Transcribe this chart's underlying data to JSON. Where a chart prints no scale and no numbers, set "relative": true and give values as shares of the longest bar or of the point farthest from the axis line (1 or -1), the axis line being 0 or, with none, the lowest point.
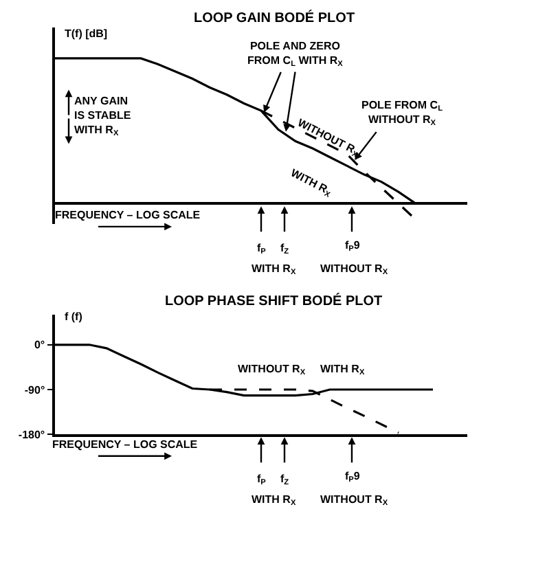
{
  "chart_data": [
    {
      "type": "line",
      "title": "LOOP GAIN BODÉ PLOT",
      "xlabel": "FREQUENCY – LOG SCALE",
      "ylabel": "T(f) [dB]",
      "relative": true,
      "marker": "none",
      "tick_labels": false,
      "categories": [
        null,
        null,
        null,
        null,
        null,
        null,
        null,
        null,
        null,
        null,
        null,
        null,
        null,
        null,
        null,
        null,
        null,
        null,
        null,
        null,
        null,
        null,
        null,
        null,
        null
      ],
      "series": [
        {
          "name": "WITH R$_{X}$",
          "color": "#000000",
          "line_style": "solid",
          "values": [
            1,
            1,
            1,
            1,
            1,
            1,
            0.96,
            0.91,
            0.86,
            0.8,
            0.75,
            0.69,
            0.64,
            0.51,
            0.43,
            0.38,
            0.32,
            0.26,
            0.2,
            0.15,
            0.08,
            0,
            null,
            null,
            null
          ]
        },
        {
          "name": "WITHOUT R$_{X}$",
          "color": "#000000",
          "line_style": "dashed",
          "values": [
            null,
            null,
            null,
            null,
            null,
            null,
            null,
            null,
            null,
            null,
            null,
            null,
            0.64,
            0.58,
            0.52,
            0.46,
            0.4,
            0.34,
            0.22,
            0.11,
            0,
            -0.11,
            null,
            null,
            null
          ]
        }
      ],
      "annotations": [
        "POLE AND ZERO\nFROM C$_{L}$ WITH R$_{X}$",
        "ANY GAIN\nIS STABLE\nWITH R$_{X}$",
        "POLE FROM C$_{L}$\nWITHOUT R$_{X}$",
        "f$_{P}$",
        "f$_{Z}$",
        "f$_{P}$9",
        "WITH R$_{X}$",
        "WITHOUT R$_{X}$"
      ]
    },
    {
      "type": "line",
      "title": "LOOP PHASE SHIFT BODÉ PLOT",
      "xlabel": "FREQUENCY – LOG SCALE",
      "ylabel": "f (f)",
      "marker": "none",
      "tick_labels": "y",
      "ylim": [
        -180,
        60
      ],
      "yticks": [
        {
          "value": 0,
          "label": "0°"
        },
        {
          "value": -90,
          "label": "-90°"
        },
        {
          "value": -180,
          "label": "-180°"
        }
      ],
      "categories": [
        null,
        null,
        null,
        null,
        null,
        null,
        null,
        null,
        null,
        null,
        null,
        null,
        null,
        null,
        null,
        null,
        null,
        null,
        null,
        null,
        null,
        null,
        null,
        null,
        null
      ],
      "series": [
        {
          "name": "WITH R$_{X}$",
          "color": "#000000",
          "line_style": "solid",
          "values": [
            0,
            0,
            0,
            -7,
            -23,
            -39,
            -56,
            -72,
            -88,
            -90,
            -95,
            -102,
            -102,
            -102,
            -102,
            -99,
            -90,
            -90,
            -90,
            -90,
            -90,
            -90,
            -90,
            null,
            null
          ]
        },
        {
          "name": "WITHOUT R$_{X}$",
          "color": "#000000",
          "line_style": "dashed",
          "values": [
            null,
            null,
            null,
            null,
            null,
            null,
            null,
            null,
            null,
            -90,
            -90,
            -90,
            -90,
            -90,
            -90,
            -93,
            -110,
            -127,
            -143,
            -160,
            -177,
            null,
            null,
            null,
            null
          ]
        }
      ],
      "annotations": [
        "f$_{P}$",
        "f$_{Z}$",
        "f$_{P}$9",
        "WITH R$_{X}$",
        "WITHOUT R$_{X}$"
      ]
    }
  ]
}
